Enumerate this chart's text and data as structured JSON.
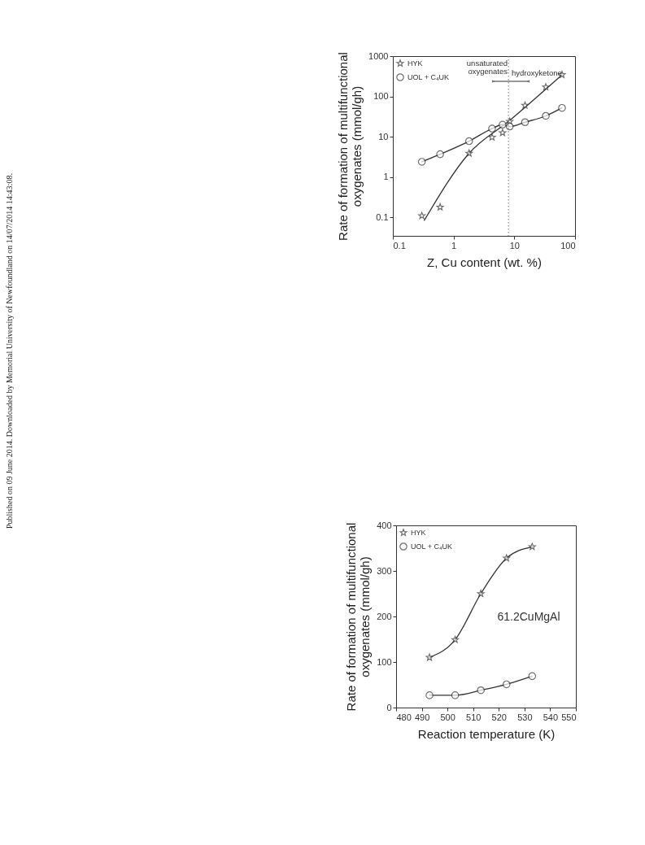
{
  "chart_data": [
    {
      "type": "line",
      "xlabel": "Z, Cu content (wt. %)",
      "ylabel": "Rate of formation of multifunctional\noxygenates (mmol/gh)",
      "log": "xy",
      "xlim": [
        0.1,
        100
      ],
      "ylim": [
        0.035,
        1000
      ],
      "xticks": [
        0.1,
        1,
        10,
        100
      ],
      "yticks": [
        0.1,
        1,
        10,
        100,
        1000
      ],
      "legend": "top left",
      "grid": false,
      "series": [
        {
          "name": "HYK",
          "type": "scatter",
          "marker": "star",
          "color": "#333333",
          "x": [
            0.3,
            0.6,
            1.8,
            4.3,
            6.4,
            8.4,
            15,
            33,
            61
          ],
          "values": [
            0.11,
            0.18,
            3.9,
            9.7,
            12.6,
            24,
            60,
            171,
            345
          ]
        },
        {
          "name": "UOL + C₄UK",
          "type": "line",
          "marker": "circle",
          "color": "#333333",
          "x": [
            0.3,
            0.6,
            1.8,
            4.3,
            6.4,
            8.4,
            15,
            33,
            61
          ],
          "values": [
            2.4,
            3.7,
            7.8,
            16,
            20,
            18,
            23,
            33,
            52
          ]
        },
        {
          "type": "line",
          "marker": "none",
          "color": "#333333",
          "x": [
            0.33,
            1.8,
            8,
            61
          ],
          "values": [
            0.085,
            3.9,
            24,
            345
          ]
        }
      ],
      "ref_lines": [
        {
          "axis": "x",
          "value": 8,
          "color": "#777777",
          "line_style": "dotted"
        }
      ],
      "annotations": [
        "unsaturated\noxygenates",
        "hydroxyketone",
        "Published on 09 June 2014. Downloaded by Memorial University of Newfoundland on 14/07/2014 14:43:08."
      ]
    },
    {
      "type": "line",
      "xlabel": "Reaction temperature (K)",
      "ylabel": "Rate of formation of multifunctional\noxygenates (mmol/gh)",
      "xlim": [
        480,
        550
      ],
      "ylim": [
        0,
        400
      ],
      "xticks": [
        480,
        490,
        500,
        510,
        520,
        530,
        540,
        550
      ],
      "yticks": [
        0,
        100,
        200,
        300,
        400
      ],
      "legend": "top left",
      "grid": false,
      "x": [
        493,
        503,
        513,
        523,
        533
      ],
      "series": [
        {
          "name": "HYK",
          "marker": "star",
          "color": "#333333",
          "values": [
            110,
            149,
            250,
            328,
            353
          ]
        },
        {
          "name": "UOL + C₄UK",
          "marker": "circle",
          "color": "#333333",
          "values": [
            27,
            27,
            38,
            51,
            69
          ]
        }
      ],
      "annotations": [
        "61.2CuMgAl"
      ]
    }
  ]
}
